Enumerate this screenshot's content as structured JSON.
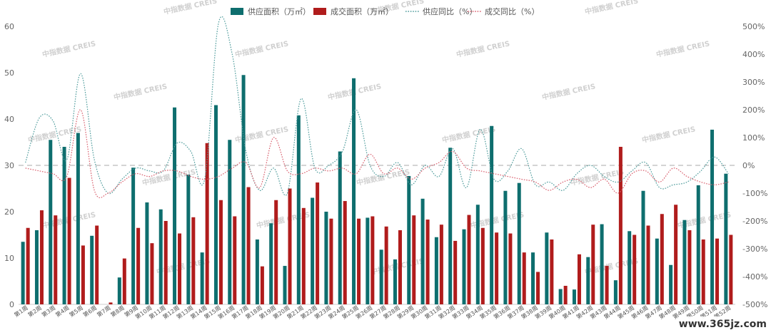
{
  "chart_data": {
    "type": "bar",
    "categories": [
      "第1周",
      "第2周",
      "第3周",
      "第4周",
      "第5周",
      "第6周",
      "第7周",
      "第8周",
      "第9周",
      "第10周",
      "第11周",
      "第12周",
      "第13周",
      "第14周",
      "第15周",
      "第16周",
      "第17周",
      "第18周",
      "第19周",
      "第20周",
      "第21周",
      "第22周",
      "第23周",
      "第24周",
      "第25周",
      "第26周",
      "第27周",
      "第28周",
      "第29周",
      "第30周",
      "第31周",
      "第32周",
      "第33周",
      "第34周",
      "第35周",
      "第36周",
      "第37周",
      "第38周",
      "第39周",
      "第40周",
      "第41周",
      "第42周",
      "第43周",
      "第44周",
      "第45周",
      "第46周",
      "第47周",
      "第48周",
      "第49周",
      "第50周",
      "第51周",
      "第52周"
    ],
    "series": [
      {
        "name": "供应面积（万㎡）",
        "type": "bar",
        "axis": "left",
        "color": "#0e6e6e",
        "values": [
          13.5,
          16,
          35.5,
          34,
          37,
          14.8,
          0,
          5.8,
          29.5,
          22,
          20.5,
          42.5,
          28,
          11.2,
          43,
          35.5,
          49.5,
          14,
          17.5,
          8.3,
          40.8,
          23,
          20,
          33,
          48.8,
          18.7,
          11.8,
          9.7,
          27.7,
          22.8,
          14.5,
          33.8,
          16.2,
          21.5,
          38.5,
          24.5,
          26.2,
          11.2,
          15.5,
          3.3,
          3.2,
          10.2,
          17.3,
          5.2,
          15.8,
          24.5,
          14.2,
          8.5,
          18.2,
          25.7,
          37.7,
          28.2
        ]
      },
      {
        "name": "成交面积（万㎡）",
        "type": "bar",
        "axis": "left",
        "color": "#b01c1c",
        "values": [
          16.5,
          20.3,
          19.2,
          27.3,
          12.7,
          17,
          0.4,
          9.9,
          16.5,
          13.2,
          18,
          15.3,
          18.8,
          34.8,
          22.5,
          19,
          25.3,
          8.2,
          22.5,
          25,
          20.8,
          26.3,
          18.5,
          22.3,
          18.5,
          19,
          16.8,
          16,
          19.2,
          18.3,
          17.2,
          13.7,
          19.3,
          16.5,
          15.5,
          15.3,
          11.2,
          7,
          14,
          4,
          10.8,
          17.2,
          8.3,
          34,
          15,
          17,
          19.5,
          21.5,
          16,
          14,
          14.2,
          15
        ]
      },
      {
        "name": "供应同比（%）",
        "type": "line",
        "axis": "right",
        "color": "#4f9c9c",
        "values": [
          10,
          170,
          160,
          20,
          330,
          20,
          -100,
          -50,
          -10,
          -20,
          -20,
          80,
          50,
          -50,
          510,
          400,
          50,
          -90,
          -10,
          -100,
          240,
          -10,
          0,
          50,
          200,
          0,
          -40,
          10,
          -70,
          0,
          -40,
          60,
          -80,
          130,
          -50,
          -20,
          60,
          -70,
          -60,
          -90,
          -30,
          0,
          -40,
          -60,
          -20,
          10,
          -80,
          -70,
          -60,
          -20,
          30,
          -30
        ]
      },
      {
        "name": "成交同比（%）",
        "type": "line",
        "axis": "right",
        "color": "#d9606e",
        "values": [
          -10,
          -20,
          -30,
          -40,
          200,
          -90,
          -100,
          -60,
          -30,
          -40,
          -20,
          -20,
          -40,
          -50,
          -40,
          -10,
          10,
          -80,
          100,
          -20,
          -30,
          -10,
          -20,
          -10,
          -30,
          40,
          -30,
          -10,
          -50,
          -10,
          10,
          50,
          -10,
          -20,
          -30,
          -40,
          -50,
          -60,
          -90,
          -60,
          -50,
          -80,
          -50,
          -100,
          -30,
          -20,
          -60,
          -10,
          -40,
          -60,
          -70,
          -60
        ]
      }
    ],
    "left_axis": {
      "min": 0,
      "max": 60,
      "ticks": [
        "0",
        "10",
        "20",
        "30",
        "40",
        "50",
        "60"
      ]
    },
    "right_axis": {
      "min": -500,
      "max": 500,
      "ticks": [
        "-500%",
        "-400%",
        "-300%",
        "-200%",
        "-100%",
        "0%",
        "100%",
        "200%",
        "300%",
        "400%",
        "500%"
      ]
    },
    "reference_line": 0,
    "legend_position": "top",
    "grid": false,
    "watermark": "中指数据 CREIS",
    "site_mark": "www.365jz.com"
  }
}
